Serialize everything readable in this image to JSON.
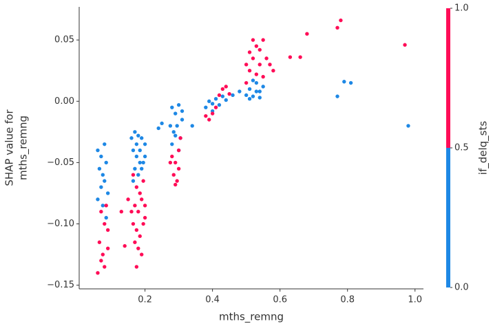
{
  "chart_data": {
    "type": "scatter",
    "xlabel": "mths_remng",
    "ylabel": [
      "SHAP value for",
      "mths_remng"
    ],
    "colorbar_label": "if_delq_sts",
    "xlim": [
      0.005,
      1.025
    ],
    "ylim": [
      -0.153,
      0.077
    ],
    "xticks": [
      0.2,
      0.4,
      0.6,
      0.8,
      {
        "value": 1.0,
        "label": "1.0"
      }
    ],
    "yticks": [
      {
        "value": 0.05,
        "label": "0.05"
      },
      {
        "value": 0.0,
        "label": "0.00"
      },
      {
        "value": -0.05,
        "label": "−0.05"
      },
      {
        "value": -0.1,
        "label": "−0.10"
      },
      {
        "value": -0.15,
        "label": "−0.15"
      }
    ],
    "clim": [
      0,
      1
    ],
    "cticks": [
      {
        "value": 0,
        "label": "0.0"
      },
      0.5,
      {
        "value": 1,
        "label": "1.0"
      }
    ],
    "colors": [
      "#1E88E5",
      "#FF0D57"
    ],
    "x": [
      0.06,
      0.07,
      0.08,
      0.065,
      0.075,
      0.085,
      0.07,
      0.08,
      0.06,
      0.075,
      0.09,
      0.085,
      0.07,
      0.08,
      0.065,
      0.075,
      0.06,
      0.08,
      0.09,
      0.07,
      0.09,
      0.085,
      0.16,
      0.17,
      0.18,
      0.19,
      0.2,
      0.165,
      0.175,
      0.185,
      0.195,
      0.17,
      0.18,
      0.19,
      0.165,
      0.2,
      0.175,
      0.185,
      0.165,
      0.175,
      0.185,
      0.195,
      0.17,
      0.18,
      0.19,
      0.2,
      0.165,
      0.175,
      0.185,
      0.195,
      0.17,
      0.18,
      0.19,
      0.175,
      0.2,
      0.16,
      0.13,
      0.14,
      0.15,
      0.24,
      0.25,
      0.28,
      0.29,
      0.3,
      0.31,
      0.275,
      0.285,
      0.295,
      0.305,
      0.28,
      0.3,
      0.29,
      0.31,
      0.28,
      0.29,
      0.3,
      0.285,
      0.295,
      0.275,
      0.305,
      0.3,
      0.29,
      0.34,
      0.38,
      0.39,
      0.4,
      0.41,
      0.42,
      0.43,
      0.44,
      0.46,
      0.48,
      0.4,
      0.4,
      0.41,
      0.42,
      0.43,
      0.44,
      0.38,
      0.39,
      0.45,
      0.5,
      0.51,
      0.52,
      0.53,
      0.54,
      0.55,
      0.52,
      0.51,
      0.54,
      0.53,
      0.5,
      0.51,
      0.52,
      0.53,
      0.54,
      0.55,
      0.52,
      0.51,
      0.53,
      0.54,
      0.56,
      0.57,
      0.55,
      0.5,
      0.58,
      0.63,
      0.66,
      0.68,
      0.77,
      0.78,
      0.97,
      0.77,
      0.79,
      0.81,
      0.98
    ],
    "y": [
      -0.04,
      -0.045,
      -0.035,
      -0.055,
      -0.06,
      -0.05,
      -0.07,
      -0.065,
      -0.08,
      -0.085,
      -0.075,
      -0.095,
      -0.09,
      -0.1,
      -0.115,
      -0.125,
      -0.14,
      -0.135,
      -0.12,
      -0.13,
      -0.105,
      -0.085,
      -0.03,
      -0.025,
      -0.028,
      -0.03,
      -0.035,
      -0.04,
      -0.045,
      -0.04,
      -0.05,
      -0.055,
      -0.06,
      -0.055,
      -0.065,
      -0.045,
      -0.035,
      -0.05,
      -0.06,
      -0.07,
      -0.075,
      -0.065,
      -0.085,
      -0.09,
      -0.08,
      -0.095,
      -0.1,
      -0.105,
      -0.11,
      -0.1,
      -0.115,
      -0.12,
      -0.125,
      -0.135,
      -0.085,
      -0.09,
      -0.09,
      -0.118,
      -0.08,
      -0.022,
      -0.018,
      -0.005,
      -0.01,
      -0.003,
      -0.015,
      -0.02,
      -0.025,
      -0.02,
      -0.03,
      -0.035,
      -0.04,
      -0.028,
      -0.008,
      -0.045,
      -0.05,
      -0.055,
      -0.06,
      -0.065,
      -0.05,
      -0.03,
      -0.04,
      -0.068,
      -0.02,
      -0.005,
      0,
      -0.002,
      0.002,
      -0.003,
      0.004,
      0.001,
      0.005,
      0.008,
      -0.008,
      -0.01,
      -0.005,
      0.005,
      0.01,
      0.012,
      -0.012,
      -0.015,
      0.006,
      0.005,
      0.01,
      0.004,
      0.015,
      0.008,
      0.012,
      0.017,
      0.002,
      0.003,
      0.008,
      0.015,
      0.025,
      0.035,
      0.045,
      0.03,
      0.02,
      0.05,
      0.04,
      0.022,
      0.042,
      0.035,
      0.03,
      0.05,
      0.03,
      0.025,
      0.036,
      0.036,
      0.055,
      0.06,
      0.066,
      0.046,
      0.004,
      0.016,
      0.015,
      -0.02
    ],
    "color_values": [
      0,
      0,
      0,
      0,
      0,
      0,
      0,
      0,
      0,
      0,
      0,
      0,
      1,
      1,
      1,
      1,
      1,
      1,
      1,
      1,
      1,
      1,
      0,
      0,
      0,
      0,
      0,
      0,
      0,
      0,
      0,
      0,
      0,
      0,
      0,
      0,
      0,
      0,
      1,
      1,
      1,
      1,
      1,
      1,
      1,
      1,
      1,
      1,
      1,
      1,
      1,
      1,
      1,
      1,
      1,
      1,
      1,
      1,
      1,
      0,
      0,
      0,
      0,
      0,
      0,
      0,
      0,
      0,
      0,
      0,
      0,
      0,
      0,
      1,
      1,
      1,
      1,
      1,
      1,
      1,
      1,
      1,
      0,
      0,
      0,
      0,
      0,
      0,
      0,
      0,
      0,
      0,
      0,
      1,
      1,
      1,
      1,
      1,
      1,
      1,
      1,
      0,
      0,
      0,
      0,
      0,
      0,
      0,
      0,
      0,
      0,
      1,
      1,
      1,
      1,
      1,
      1,
      1,
      1,
      1,
      1,
      1,
      1,
      1,
      1,
      1,
      1,
      1,
      1,
      1,
      1,
      1,
      0,
      0,
      0,
      0
    ]
  }
}
